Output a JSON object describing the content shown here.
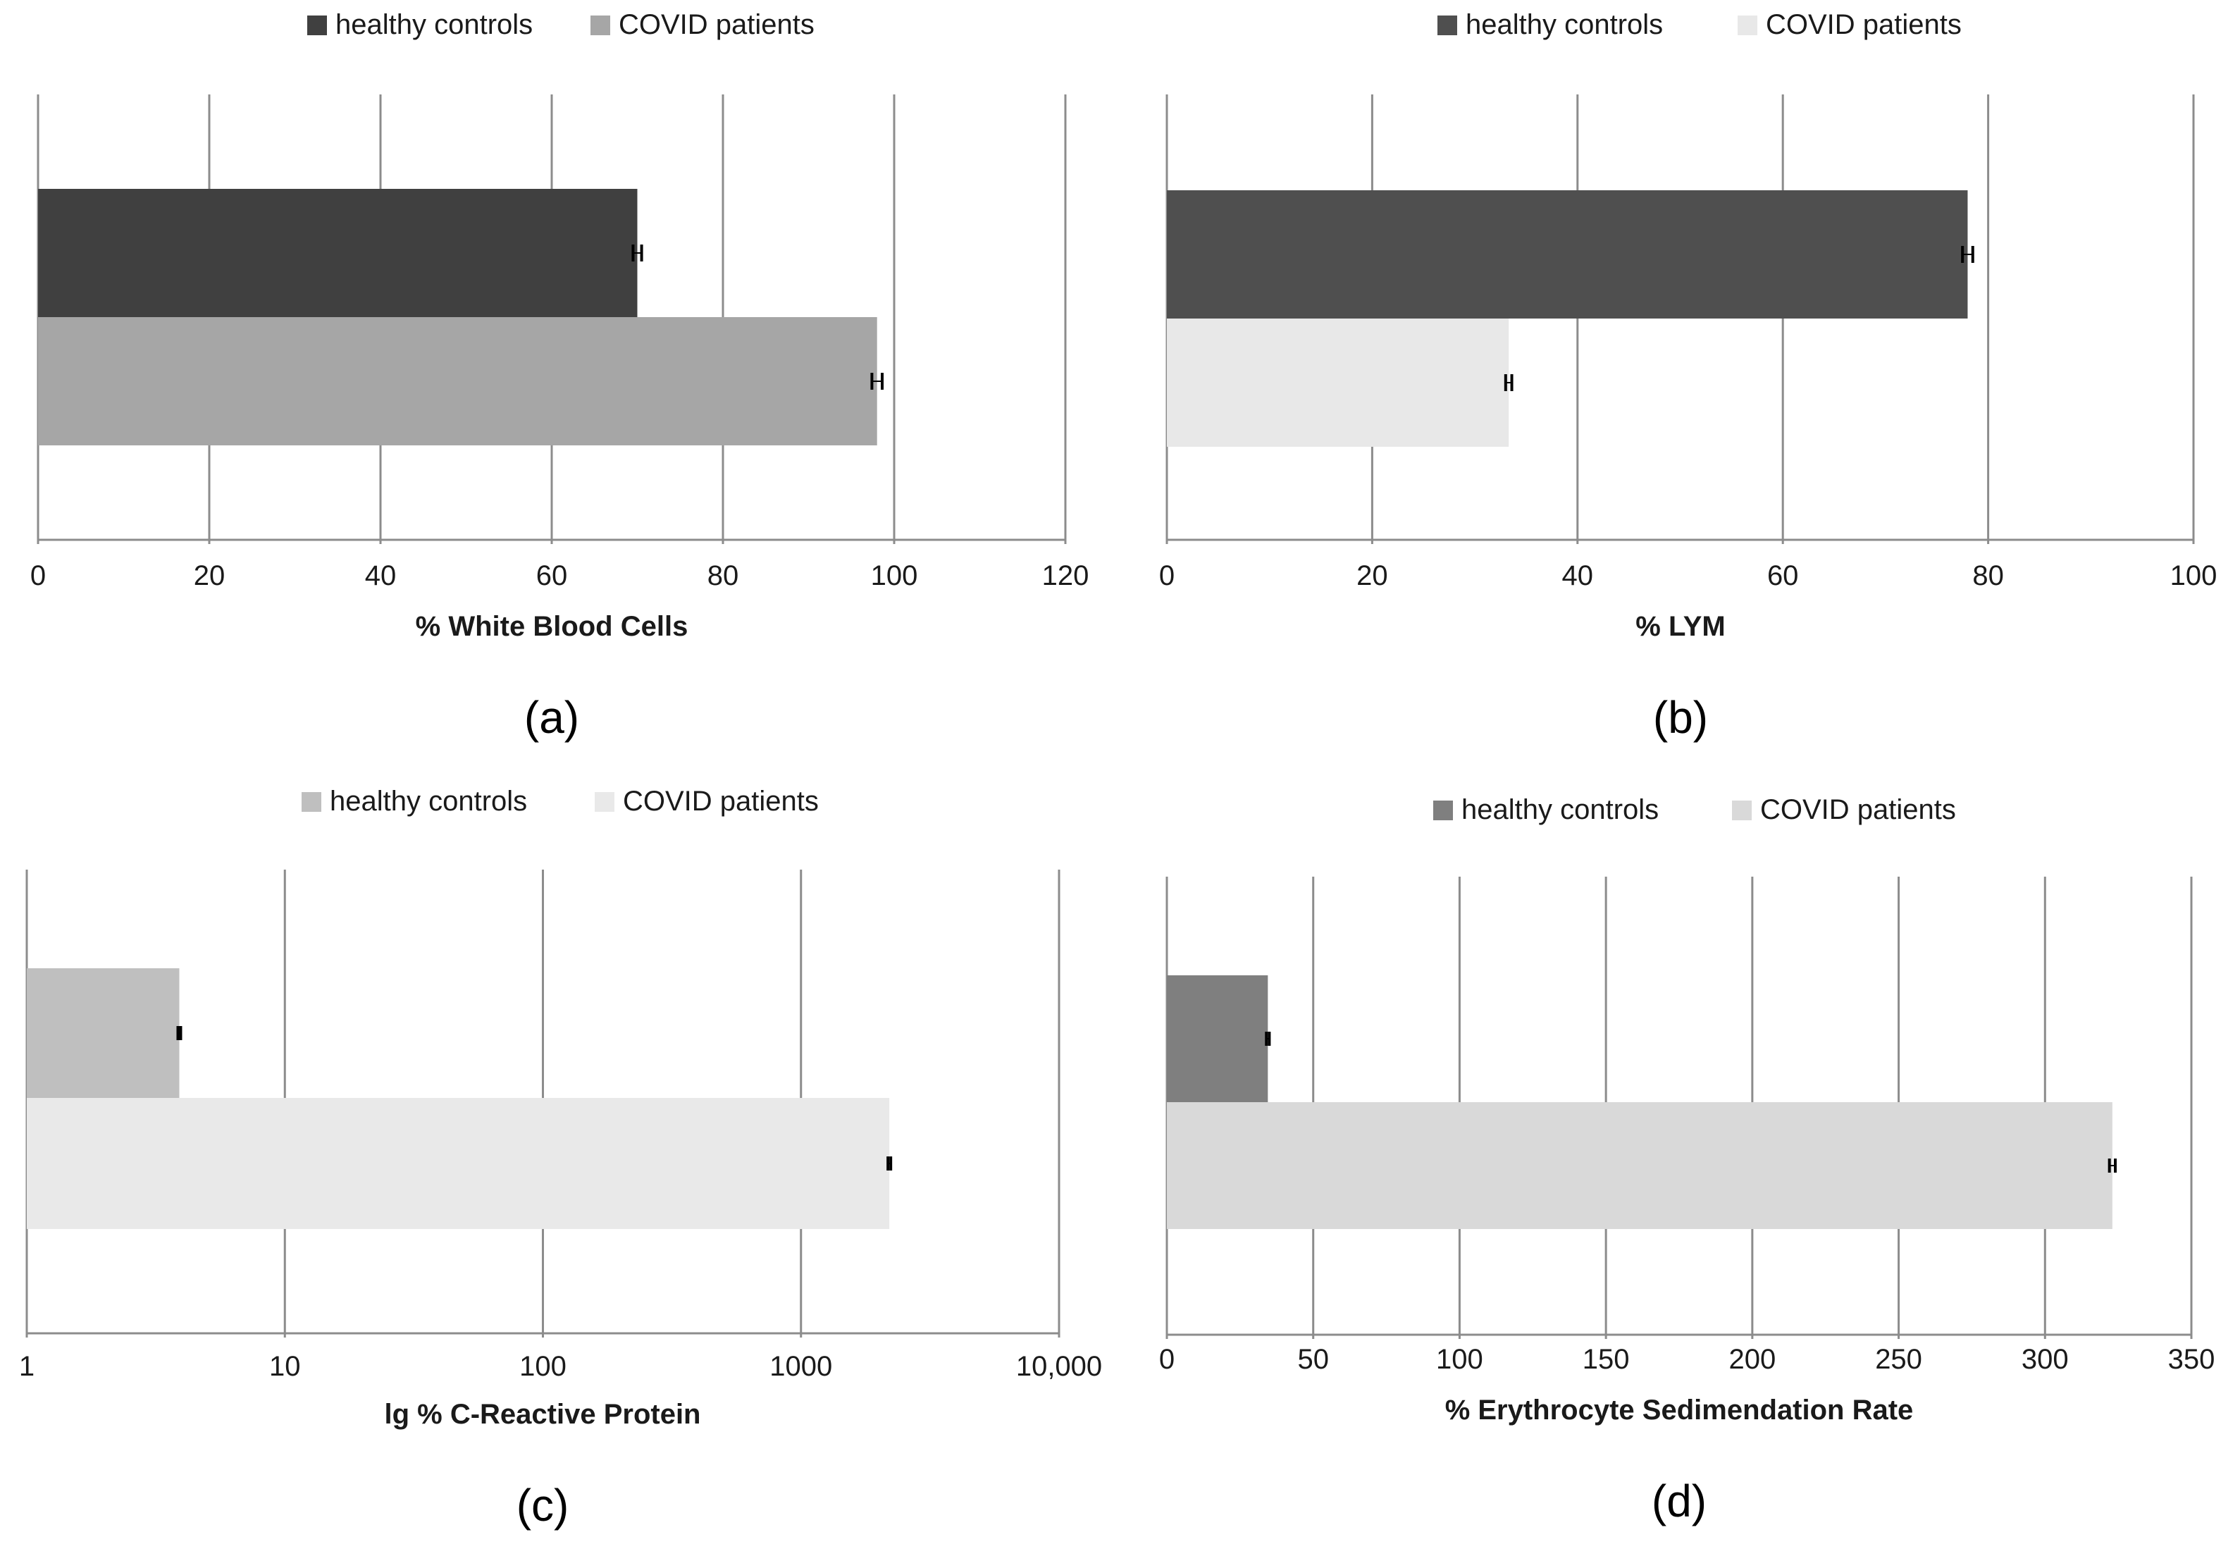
{
  "chart_data": [
    {
      "type": "bar",
      "orientation": "horizontal",
      "panel_label": "(a)",
      "xlabel": "% White Blood Cells",
      "ylabel": "",
      "scale": "linear",
      "xlim": [
        0,
        120
      ],
      "ticks": [
        0,
        20,
        40,
        60,
        80,
        100,
        120
      ],
      "tick_labels": [
        "0",
        "20",
        "40",
        "60",
        "80",
        "100",
        "120"
      ],
      "grid": true,
      "legend_position": "top",
      "series": [
        {
          "name": "healthy controls",
          "values": [
            70
          ],
          "error": [
            0.5
          ],
          "color": "#404040"
        },
        {
          "name": "COVID patients",
          "values": [
            98
          ],
          "error": [
            0.6
          ],
          "color": "#a6a6a6"
        }
      ]
    },
    {
      "type": "bar",
      "orientation": "horizontal",
      "panel_label": "(b)",
      "xlabel": "% LYM",
      "ylabel": "",
      "scale": "linear",
      "xlim": [
        0,
        100
      ],
      "ticks": [
        0,
        20,
        40,
        60,
        80,
        100
      ],
      "tick_labels": [
        "0",
        "20",
        "40",
        "60",
        "80",
        "100"
      ],
      "grid": true,
      "legend_position": "top",
      "series": [
        {
          "name": "healthy controls",
          "values": [
            78
          ],
          "error": [
            0.5
          ],
          "color": "#4f4f4f"
        },
        {
          "name": "COVID patients",
          "values": [
            33.3
          ],
          "error": [
            0.3
          ],
          "color": "#e8e8e8"
        }
      ]
    },
    {
      "type": "bar",
      "orientation": "horizontal",
      "panel_label": "(c)",
      "xlabel": "lg % C-Reactive Protein",
      "ylabel": "",
      "scale": "log",
      "xlim": [
        1,
        10000
      ],
      "ticks": [
        1,
        10,
        100,
        1000,
        10000
      ],
      "tick_labels": [
        "1",
        "10",
        "100",
        "1000",
        "10,000"
      ],
      "grid": true,
      "legend_position": "top",
      "series": [
        {
          "name": "healthy controls",
          "values": [
            3.9
          ],
          "error": [
            0
          ],
          "color": "#bfbfbf"
        },
        {
          "name": "COVID patients",
          "values": [
            2200
          ],
          "error": [
            0
          ],
          "color": "#e9e9e9"
        }
      ]
    },
    {
      "type": "bar",
      "orientation": "horizontal",
      "panel_label": "(d)",
      "xlabel": "% Erythrocyte Sedimendation Rate",
      "ylabel": "",
      "scale": "linear",
      "xlim": [
        0,
        350
      ],
      "ticks": [
        0,
        50,
        100,
        150,
        200,
        250,
        300,
        350
      ],
      "tick_labels": [
        "0",
        "50",
        "100",
        "150",
        "200",
        "250",
        "300",
        "350"
      ],
      "grid": true,
      "legend_position": "top",
      "series": [
        {
          "name": "healthy controls",
          "values": [
            34.5
          ],
          "error": [
            0.5
          ],
          "color": "#7f7f7f"
        },
        {
          "name": "COVID patients",
          "values": [
            323
          ],
          "error": [
            1
          ],
          "color": "#d9d9d9"
        }
      ]
    }
  ]
}
